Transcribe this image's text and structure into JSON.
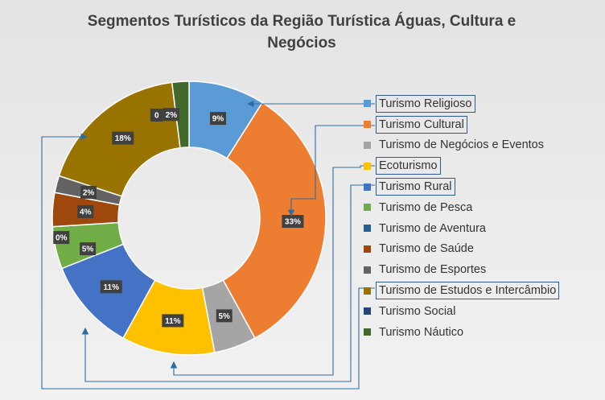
{
  "title": "Segmentos Turísticos da Região Turística Águas, Cultura e Negócios",
  "title_lines": [
    "Segmentos Turísticos da Região Turística Águas, Cultura e",
    "Negócios"
  ],
  "colors": {
    "background": "#e9e9e9",
    "annotation_line": "#2e6da4",
    "data_label_bg": "#404040"
  },
  "chart_data": {
    "type": "pie",
    "variant": "donut",
    "title": "Segmentos Turísticos da Região Turística Águas, Cultura e Negócios",
    "legend_position": "right",
    "categories": [
      "Turismo Religioso",
      "Turismo Cultural",
      "Turismo de Negócios e Eventos",
      "Ecoturismo",
      "Turismo Rural",
      "Turismo de Pesca",
      "Turismo de Aventura",
      "Turismo de Saúde",
      "Turismo de Esportes",
      "Turismo de Estudos e Intercâmbio",
      "Turismo Social",
      "Turismo Náutico"
    ],
    "values": [
      9,
      33,
      5,
      11,
      11,
      5,
      0,
      4,
      2,
      18,
      0,
      2
    ],
    "data_labels": [
      "9%",
      "33%",
      "5%",
      "11%",
      "11%",
      "5%",
      "0%",
      "4%",
      "2%",
      "18%",
      "0",
      "2%"
    ],
    "colors": [
      "#5b9bd5",
      "#ed7d31",
      "#a5a5a5",
      "#ffc000",
      "#4472c4",
      "#70ad47",
      "#255e91",
      "#9e480e",
      "#636363",
      "#997300",
      "#264478",
      "#43682b"
    ],
    "highlighted_in_legend": [
      "Turismo Religioso",
      "Turismo Cultural",
      "Ecoturismo",
      "Turismo Rural",
      "Turismo de Estudos e Intercâmbio"
    ]
  }
}
